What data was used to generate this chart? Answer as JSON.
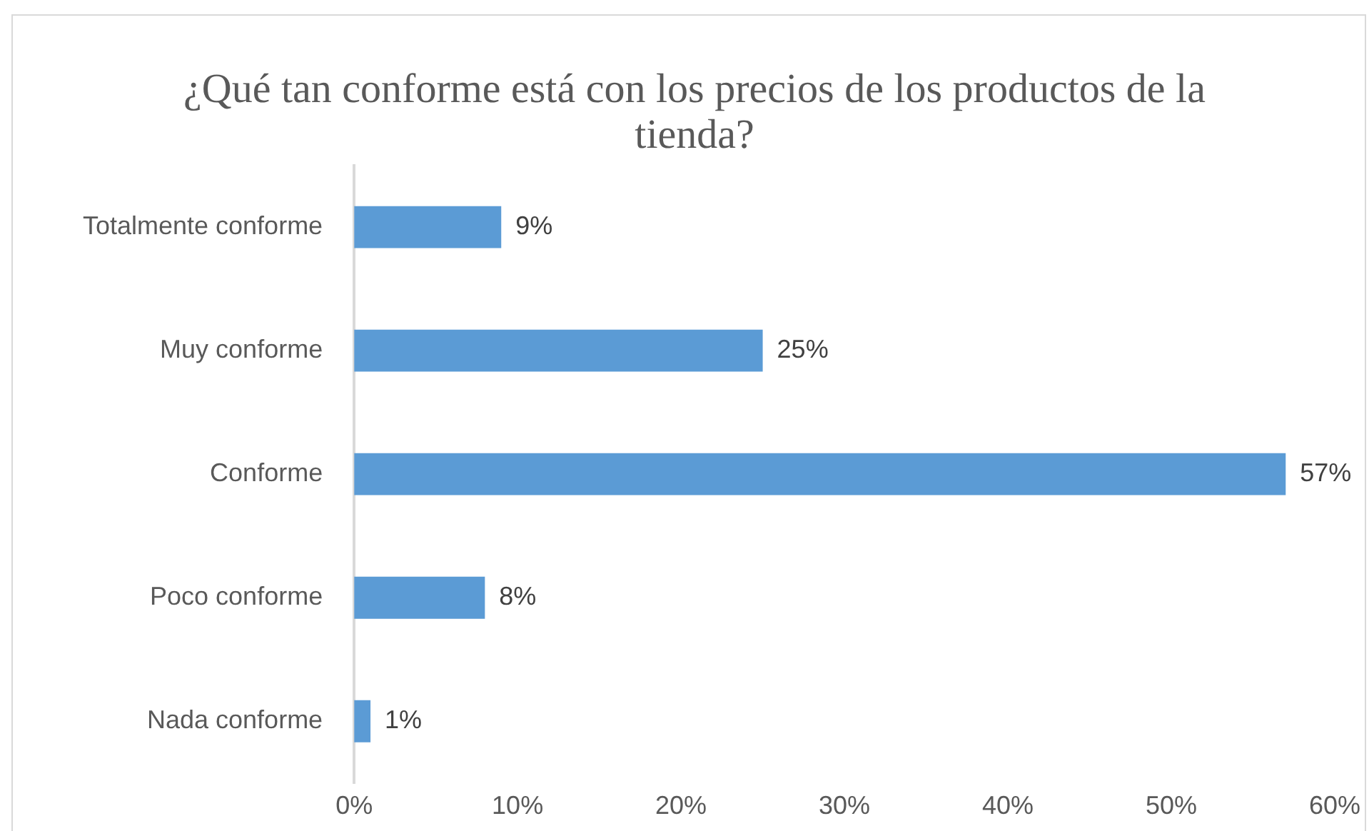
{
  "chart_data": {
    "type": "bar",
    "orientation": "horizontal",
    "title": "¿Qué tan conforme está con los precios de los productos de la tienda?",
    "categories": [
      "Totalmente conforme",
      "Muy conforme",
      "Conforme",
      "Poco conforme",
      "Nada conforme"
    ],
    "values": [
      9,
      25,
      57,
      8,
      1
    ],
    "value_labels": [
      "9%",
      "25%",
      "57%",
      "8%",
      "1%"
    ],
    "color": "#5b9bd5",
    "xlim": [
      0,
      60
    ],
    "xticks": [
      {
        "value": 0,
        "label": "0%"
      },
      {
        "value": 10,
        "label": "10%"
      },
      {
        "value": 20,
        "label": "20%"
      },
      {
        "value": 30,
        "label": "30%"
      },
      {
        "value": 40,
        "label": "40%"
      },
      {
        "value": 50,
        "label": "50%"
      },
      {
        "value": 60,
        "label": "60%"
      }
    ],
    "grid": false,
    "legend": false
  }
}
